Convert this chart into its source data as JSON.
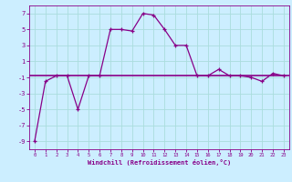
{
  "x": [
    0,
    1,
    2,
    3,
    4,
    5,
    6,
    7,
    8,
    9,
    10,
    11,
    12,
    13,
    14,
    15,
    16,
    17,
    18,
    19,
    20,
    21,
    22,
    23
  ],
  "y": [
    -9,
    -1.5,
    -0.8,
    -0.8,
    -5.0,
    -0.8,
    -0.8,
    5.0,
    5.0,
    4.8,
    7.0,
    6.8,
    5.0,
    3.0,
    3.0,
    -0.8,
    -0.8,
    0.0,
    -0.8,
    -0.8,
    -1.0,
    -1.5,
    -0.5,
    -0.8
  ],
  "y2_const": -0.8,
  "xlabel": "Windchill (Refroidissement éolien,°C)",
  "xlim": [
    -0.5,
    23.5
  ],
  "ylim": [
    -10,
    8
  ],
  "yticks": [
    -9,
    -7,
    -5,
    -3,
    -1,
    1,
    3,
    5,
    7
  ],
  "xticks": [
    0,
    1,
    2,
    3,
    4,
    5,
    6,
    7,
    8,
    9,
    10,
    11,
    12,
    13,
    14,
    15,
    16,
    17,
    18,
    19,
    20,
    21,
    22,
    23
  ],
  "line_color": "#880088",
  "bg_color": "#cceeff",
  "grid_color": "#aadddd",
  "marker": "+"
}
